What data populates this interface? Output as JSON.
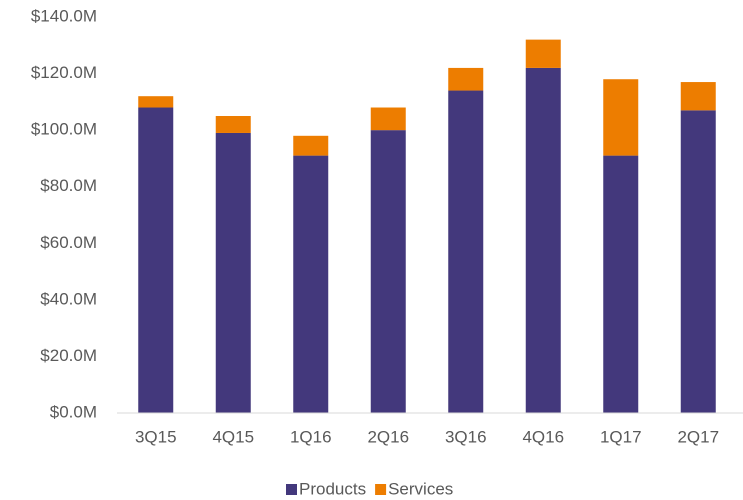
{
  "chart_data": {
    "type": "stacked_bar",
    "categories": [
      "3Q15",
      "4Q15",
      "1Q16",
      "2Q16",
      "3Q16",
      "4Q16",
      "1Q17",
      "2Q17"
    ],
    "series": [
      {
        "name": "Products",
        "color": "#43387c",
        "values": [
          108,
          99,
          91,
          100,
          114,
          122,
          91,
          107
        ]
      },
      {
        "name": "Services",
        "color": "#ed7d00",
        "values": [
          4,
          6,
          7,
          8,
          8,
          10,
          27,
          10
        ]
      }
    ],
    "ylim": [
      0,
      140
    ],
    "yticks": [
      {
        "value": 0,
        "label": "$0.0M"
      },
      {
        "value": 20,
        "label": "$20.0M"
      },
      {
        "value": 40,
        "label": "$40.0M"
      },
      {
        "value": 60,
        "label": "$60.0M"
      },
      {
        "value": 80,
        "label": "$80.0M"
      },
      {
        "value": 100,
        "label": "$100.0M"
      },
      {
        "value": 120,
        "label": "$120.0M"
      },
      {
        "value": 140,
        "label": "$140.0M"
      }
    ],
    "grid": false,
    "legend": "bottom"
  }
}
